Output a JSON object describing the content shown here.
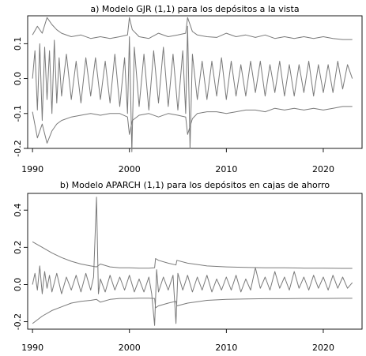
{
  "chart_data": [
    {
      "type": "line",
      "title": "a) Modelo GJR (1,1) para los depósitos a la vista",
      "xlabel": "",
      "ylabel": "",
      "xlim": [
        1989.5,
        2024.0
      ],
      "ylim": [
        -0.2,
        0.18
      ],
      "xticks": [
        1990,
        2000,
        2010,
        2020
      ],
      "yticks": [
        -0.2,
        -0.1,
        0.0,
        0.1
      ],
      "ytick_labels": [
        "-0.2",
        "-0.1",
        "0.0",
        "0.1"
      ],
      "grid": false,
      "legend": "none",
      "line_color": "#7a7a7a",
      "series": [
        {
          "role": "upper-band",
          "x": [
            1990,
            1990.5,
            1991,
            1991.5,
            1992,
            1992.5,
            1993,
            1994,
            1995,
            1996,
            1997,
            1998,
            1999,
            1999.8,
            2000,
            2000.3,
            2001,
            2002,
            2003,
            2004,
            2005,
            2005.8,
            2006,
            2006.5,
            2007,
            2008,
            2009,
            2010,
            2011,
            2012,
            2013,
            2014,
            2015,
            2016,
            2017,
            2018,
            2019,
            2020,
            2021,
            2022,
            2023
          ],
          "y": [
            0.125,
            0.15,
            0.13,
            0.175,
            0.155,
            0.14,
            0.13,
            0.12,
            0.125,
            0.115,
            0.12,
            0.115,
            0.12,
            0.125,
            0.175,
            0.14,
            0.12,
            0.115,
            0.13,
            0.12,
            0.125,
            0.13,
            0.175,
            0.135,
            0.125,
            0.12,
            0.118,
            0.13,
            0.12,
            0.125,
            0.118,
            0.125,
            0.115,
            0.12,
            0.115,
            0.12,
            0.115,
            0.12,
            0.115,
            0.112,
            0.112
          ]
        },
        {
          "role": "residuals",
          "x": [
            1990,
            1990.25,
            1990.5,
            1990.75,
            1991,
            1991.25,
            1991.5,
            1991.75,
            1992,
            1992.25,
            1992.5,
            1992.75,
            1993,
            1993.5,
            1994,
            1994.5,
            1995,
            1995.5,
            1996,
            1996.5,
            1997,
            1997.5,
            1998,
            1998.5,
            1999,
            1999.5,
            1999.8,
            2000,
            2000.25,
            2000.5,
            2001,
            2001.5,
            2002,
            2002.5,
            2003,
            2003.5,
            2004,
            2004.5,
            2005,
            2005.5,
            2005.8,
            2006,
            2006.25,
            2006.5,
            2007,
            2007.5,
            2008,
            2008.5,
            2009,
            2009.5,
            2010,
            2010.5,
            2011,
            2011.5,
            2012,
            2012.5,
            2013,
            2013.5,
            2014,
            2014.5,
            2015,
            2015.5,
            2016,
            2016.5,
            2017,
            2017.5,
            2018,
            2018.5,
            2019,
            2019.5,
            2020,
            2020.5,
            2021,
            2021.5,
            2022,
            2022.5,
            2023
          ],
          "y": [
            0.0,
            0.08,
            -0.09,
            0.1,
            -0.12,
            0.09,
            -0.06,
            0.08,
            -0.1,
            0.11,
            -0.07,
            0.06,
            -0.05,
            0.07,
            -0.06,
            0.05,
            -0.07,
            0.06,
            -0.05,
            0.06,
            -0.06,
            0.05,
            -0.07,
            0.07,
            -0.08,
            0.06,
            -0.1,
            0.12,
            -0.21,
            0.09,
            -0.08,
            0.07,
            -0.09,
            0.08,
            -0.07,
            0.09,
            -0.08,
            0.07,
            -0.09,
            0.08,
            -0.1,
            0.15,
            -0.2,
            0.07,
            -0.06,
            0.05,
            -0.06,
            0.05,
            -0.05,
            0.06,
            -0.06,
            0.05,
            -0.05,
            0.04,
            -0.05,
            0.05,
            -0.04,
            0.05,
            -0.05,
            0.04,
            -0.04,
            0.05,
            -0.05,
            0.04,
            -0.05,
            0.04,
            -0.04,
            0.05,
            -0.05,
            0.04,
            -0.04,
            0.04,
            -0.04,
            0.05,
            -0.03,
            0.04,
            0.0
          ]
        },
        {
          "role": "lower-band",
          "x": [
            1990,
            1990.5,
            1991,
            1991.5,
            1992,
            1992.5,
            1993,
            1994,
            1995,
            1996,
            1997,
            1998,
            1999,
            1999.8,
            2000,
            2000.3,
            2001,
            2002,
            2003,
            2004,
            2005,
            2005.8,
            2006,
            2006.5,
            2007,
            2008,
            2009,
            2010,
            2011,
            2012,
            2013,
            2014,
            2015,
            2016,
            2017,
            2018,
            2019,
            2020,
            2021,
            2022,
            2023
          ],
          "y": [
            -0.095,
            -0.17,
            -0.13,
            -0.185,
            -0.15,
            -0.13,
            -0.12,
            -0.11,
            -0.105,
            -0.1,
            -0.105,
            -0.1,
            -0.1,
            -0.11,
            -0.16,
            -0.12,
            -0.105,
            -0.1,
            -0.11,
            -0.1,
            -0.105,
            -0.11,
            -0.16,
            -0.115,
            -0.1,
            -0.095,
            -0.095,
            -0.1,
            -0.095,
            -0.09,
            -0.09,
            -0.095,
            -0.085,
            -0.09,
            -0.085,
            -0.09,
            -0.085,
            -0.09,
            -0.085,
            -0.08,
            -0.08
          ]
        }
      ]
    },
    {
      "type": "line",
      "title": "b) Modelo APARCH (1,1) para los depósitos en cajas de ahorro",
      "xlabel": "",
      "ylabel": "",
      "xlim": [
        1989.5,
        2024.0
      ],
      "ylim": [
        -0.24,
        0.49
      ],
      "xticks": [
        1990,
        2000,
        2010,
        2020
      ],
      "yticks": [
        -0.2,
        0.0,
        0.2,
        0.4
      ],
      "ytick_labels": [
        "-0.2",
        "0.0",
        "0.2",
        "0.4"
      ],
      "grid": false,
      "legend": "none",
      "line_color": "#7a7a7a",
      "series": [
        {
          "role": "upper-band",
          "x": [
            1990,
            1991,
            1992,
            1993,
            1994,
            1995,
            1996,
            1996.6,
            1997,
            1998,
            1999,
            2000,
            2001,
            2002,
            2002.6,
            2002.7,
            2003,
            2004,
            2004.8,
            2004.9,
            2006,
            2008,
            2010,
            2012,
            2014,
            2016,
            2018,
            2020,
            2022,
            2023
          ],
          "y": [
            0.23,
            0.2,
            0.17,
            0.145,
            0.125,
            0.11,
            0.1,
            0.095,
            0.11,
            0.095,
            0.09,
            0.09,
            0.088,
            0.088,
            0.09,
            0.14,
            0.13,
            0.115,
            0.105,
            0.13,
            0.115,
            0.1,
            0.095,
            0.092,
            0.09,
            0.09,
            0.088,
            0.088,
            0.087,
            0.087
          ]
        },
        {
          "role": "residuals",
          "x": [
            1990,
            1990.25,
            1990.5,
            1990.75,
            1991,
            1991.25,
            1991.5,
            1991.75,
            1992,
            1992.5,
            1993,
            1993.5,
            1994,
            1994.5,
            1995,
            1995.5,
            1996,
            1996.3,
            1996.6,
            1996.8,
            1997,
            1997.5,
            1998,
            1998.5,
            1999,
            1999.5,
            2000,
            2000.5,
            2001,
            2001.5,
            2002,
            2002.3,
            2002.6,
            2002.8,
            2003,
            2003.5,
            2004,
            2004.5,
            2004.8,
            2005,
            2005.5,
            2006,
            2006.5,
            2007,
            2007.5,
            2008,
            2008.5,
            2009,
            2009.5,
            2010,
            2010.5,
            2011,
            2011.5,
            2012,
            2012.5,
            2013,
            2013.5,
            2014,
            2014.5,
            2015,
            2015.5,
            2016,
            2016.5,
            2017,
            2017.5,
            2018,
            2018.5,
            2019,
            2019.5,
            2020,
            2020.5,
            2021,
            2021.5,
            2022,
            2022.5,
            2023
          ],
          "y": [
            0.0,
            0.06,
            -0.03,
            0.1,
            -0.05,
            0.07,
            -0.02,
            0.05,
            -0.04,
            0.06,
            -0.05,
            0.04,
            -0.03,
            0.05,
            -0.04,
            0.06,
            -0.03,
            0.04,
            0.47,
            -0.05,
            0.03,
            -0.04,
            0.05,
            -0.03,
            0.04,
            -0.03,
            0.05,
            -0.04,
            0.03,
            -0.04,
            0.04,
            -0.05,
            -0.22,
            0.08,
            -0.04,
            0.04,
            -0.03,
            0.05,
            -0.21,
            0.06,
            -0.03,
            0.05,
            -0.04,
            0.04,
            -0.03,
            0.05,
            -0.04,
            0.03,
            -0.03,
            0.04,
            -0.03,
            0.05,
            -0.04,
            0.03,
            -0.03,
            0.09,
            -0.02,
            0.04,
            -0.03,
            0.07,
            -0.02,
            0.04,
            -0.03,
            0.07,
            -0.02,
            0.04,
            -0.03,
            0.05,
            -0.02,
            0.04,
            -0.03,
            0.05,
            -0.02,
            0.04,
            -0.02,
            0.01
          ]
        },
        {
          "role": "lower-band",
          "x": [
            1990,
            1991,
            1992,
            1993,
            1994,
            1995,
            1996,
            1996.6,
            1997,
            1998,
            1999,
            2000,
            2001,
            2002,
            2002.6,
            2002.7,
            2003,
            2004,
            2004.8,
            2004.9,
            2006,
            2008,
            2010,
            2012,
            2014,
            2016,
            2018,
            2020,
            2022,
            2023
          ],
          "y": [
            -0.21,
            -0.17,
            -0.14,
            -0.12,
            -0.1,
            -0.09,
            -0.085,
            -0.08,
            -0.095,
            -0.08,
            -0.075,
            -0.075,
            -0.073,
            -0.073,
            -0.075,
            -0.125,
            -0.115,
            -0.1,
            -0.09,
            -0.115,
            -0.1,
            -0.085,
            -0.08,
            -0.078,
            -0.076,
            -0.076,
            -0.075,
            -0.075,
            -0.074,
            -0.074
          ]
        }
      ]
    }
  ]
}
